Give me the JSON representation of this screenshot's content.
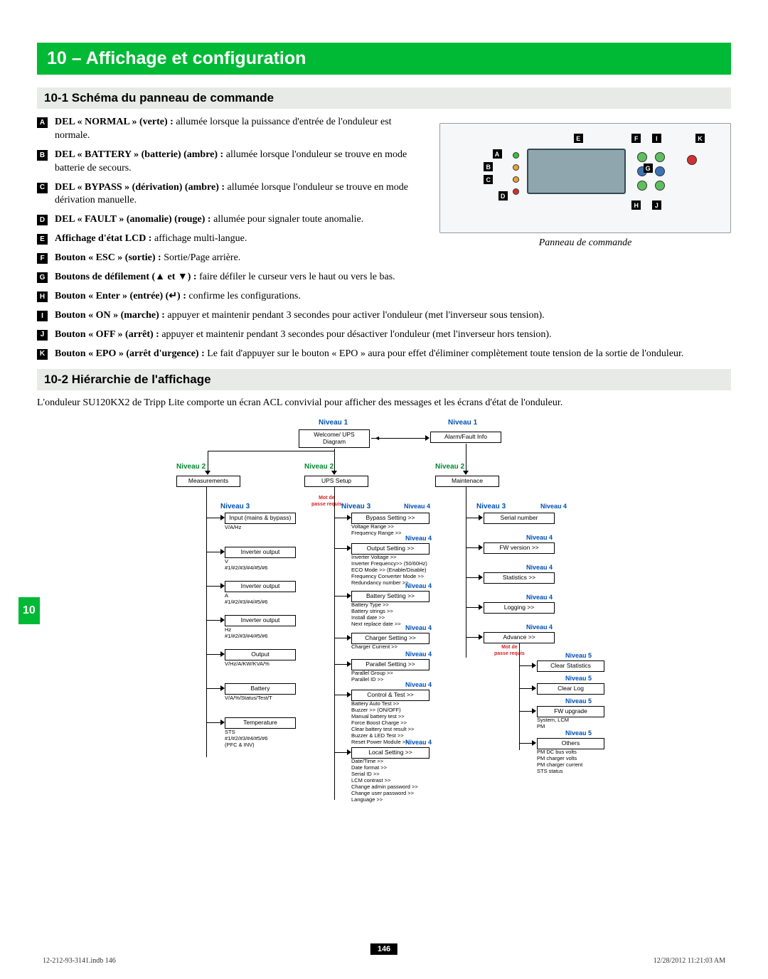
{
  "header": "10 – Affichage et configuration",
  "section1": "10-1 Schéma du panneau de commande",
  "section2": "10-2 Hiérarchie de l'affichage",
  "caption": "Panneau de commande",
  "intro": "L'onduleur SU120KX2 de Tripp Lite comporte un écran ACL convivial pour afficher des messages et les écrans d'état de l'onduleur.",
  "pageNum": "146",
  "footL": "12-212-93-3141.indb   146",
  "footR": "12/28/2012   11:21:03 AM",
  "sideTab": "10",
  "colors": {
    "accent": "#00b935",
    "subbar": "#e8eae8",
    "red": "#d42020",
    "blue": "#0051b5",
    "green": "#008a2e"
  },
  "items": [
    {
      "m": "A",
      "b": "DEL « NORMAL » (verte) :",
      "t": " allumée lorsque la puissance d'entrée de l'onduleur est normale."
    },
    {
      "m": "B",
      "b": "DEL « BATTERY » (batterie) (ambre) :",
      "t": " allumée lorsque l'onduleur se trouve en mode batterie de secours."
    },
    {
      "m": "C",
      "b": "DEL « BYPASS » (dérivation) (ambre) :",
      "t": " allumée lorsque l'onduleur se trouve en mode dérivation manuelle."
    },
    {
      "m": "D",
      "b": "DEL « FAULT » (anomalie) (rouge) :",
      "t": " allumée pour signaler toute anomalie."
    },
    {
      "m": "E",
      "b": "Affichage d'état LCD :",
      "t": " affichage multi-langue."
    },
    {
      "m": "F",
      "b": "Bouton « ESC » (sortie) :",
      "t": " Sortie/Page arrière."
    },
    {
      "m": "G",
      "b": "Boutons de défilement (▲ et ▼) :",
      "t": " faire défiler le curseur vers le haut ou vers le bas."
    },
    {
      "m": "H",
      "b": "Bouton « Enter » (entrée) (↵) :",
      "t": " confirme les configurations."
    },
    {
      "m": "I",
      "b": "Bouton « ON » (marche) :",
      "t": " appuyer et maintenir pendant 3 secondes pour activer l'onduleur (met l'inverseur sous tension)."
    },
    {
      "m": "J",
      "b": "Bouton « OFF » (arrêt) :",
      "t": " appuyer et maintenir pendant 3 secondes pour désactiver l'onduleur (met l'inverseur hors tension)."
    },
    {
      "m": "K",
      "b": "Bouton « EPO » (arrêt d'urgence) :",
      "t": " Le fait d'appuyer sur le bouton « EPO » aura pour effet d'éliminer complètement toute tension de la sortie de l'onduleur."
    }
  ],
  "lvl": {
    "n1a": "Niveau 1",
    "n1b": "Niveau 1",
    "n2a": "Niveau  2",
    "n2b": "Niveau  2",
    "n2c": "Niveau  2",
    "n3a": "Niveau 3",
    "n3b": "Niveau 3",
    "n3c": "Niveau 3",
    "n4a": "Niveau  4",
    "n4b": "Niveau  4",
    "n4c": "Niveau  4",
    "n4d": "Niveau  4",
    "n4e": "Niveau  4",
    "n4f": "Niveau  4",
    "n4g": "Niveau  4",
    "n4h": "Niveau 4",
    "n4i": "Niveau 4",
    "n4j": "Niveau 4",
    "n4k": "Niveau 4",
    "n4l": "Niveau 4",
    "n5a": "Niveau  5",
    "n5b": "Niveau  5",
    "n5c": "Niveau  5",
    "n5d": "Niveau  5",
    "pwd": "Mot de\npasse requis",
    "pwd2": "Mot de\npasse requis"
  },
  "boxes": {
    "b1": "Welcome/\nUPS Diagram",
    "b2": "Alarm/Fault Info",
    "b3": "Measurements",
    "b4": "UPS Setup",
    "b5": "Maintenace",
    "m1": "Input (mains & bypass)",
    "m1s": "V/A/Hz",
    "m2": "Inverter output",
    "m2s": "V\n#1/#2/#3/#4/#5/#6",
    "m3": "Inverter output",
    "m3s": "A\n#1/#2/#3/#4/#5/#6",
    "m4": "Inverter output",
    "m4s": "Hz\n#1/#2/#3/#4/#5/#6",
    "m5": "Output",
    "m5s": "V/Hz/A/KW/KVA/%",
    "m6": "Battery",
    "m6s": "V/A/%/Status/Test/T",
    "m7": "Temperature",
    "m7s": "STS\n#1/#2/#3/#4/#5/#6\n(PFC & INV)",
    "u1": "Bypass Setting >>",
    "u1s": "Voltage Range  >>\nFrequency Range  >>",
    "u2": "Output Setting >>",
    "u2s": "Inverter Voltage  >>\nInverter Frequency>> (50/60Hz)\nECO Mode >> (Enable/Disable)\nFrequency Converter Mode  >>\nRedundancy number  >>",
    "u3": "Battery Setting >>",
    "u3s": "Battery Type  >>\nBattery strings  >>\nInstall date  >>\nNext replace date >>",
    "u4": "Charger Setting >>",
    "u4s": "Charger Current  >>",
    "u5": "Parallel  Setting >>",
    "u5s": "Parallel Group  >>\nParallel ID  >>",
    "u6": "Control & Test >>",
    "u6s": "Battery Auto Test  >>\nBuzzer  >> (ON/OFF)\nManual battery test  >>\nForce Boost Charge  >>\nClear battery test result  >>\nBuzzer & LED Test  >>\nReset Power Module >>",
    "u7": "Local Setting >>",
    "u7s": "Date/Time  >>\nDate format  >>\nSerial ID  >>\nLCM contrast  >>\nChange admin password  >>\nChange user password  >>\nLanguage  >>",
    "t1": "Serial number",
    "t2": "FW version >>",
    "t3": "Statistics  >>",
    "t4": "Logging >>",
    "t5": "Advance >>",
    "a1": "Clear Statistics",
    "a2": "Clear Log",
    "a3": "FW upgrade",
    "a3s": "System, LCM\nPM",
    "a4": "Others",
    "a4s": "PM DC bus volts\nPM charger volts\nPM charger current\nSTS status"
  }
}
